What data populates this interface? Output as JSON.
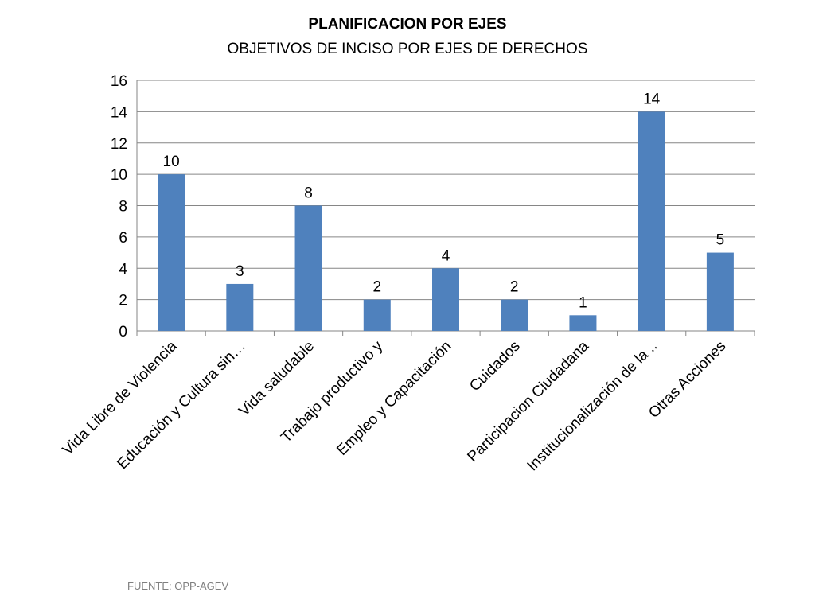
{
  "chart_data": {
    "type": "bar",
    "title": "PLANIFICACION POR EJES",
    "subtitle": "OBJETIVOS DE INCISO POR EJES DE DERECHOS",
    "categories": [
      "Vida Libre de Violencia",
      "Educación y Cultura sin…",
      "Vida saludable",
      "Trabajo productivo y",
      "Empleo y Capacitación",
      "Cuidados",
      "Participacion Ciudadana",
      "Institucionalización de la ..",
      "Otras Acciones"
    ],
    "values": [
      10,
      3,
      8,
      2,
      4,
      2,
      1,
      14,
      5
    ],
    "ylim": [
      0,
      16
    ],
    "yticks": [
      0,
      2,
      4,
      6,
      8,
      10,
      12,
      14,
      16
    ],
    "grid": true,
    "legend": "none",
    "bar_color": "#4F81BD"
  },
  "footer": {
    "source": "FUENTE: OPP-AGEV"
  }
}
